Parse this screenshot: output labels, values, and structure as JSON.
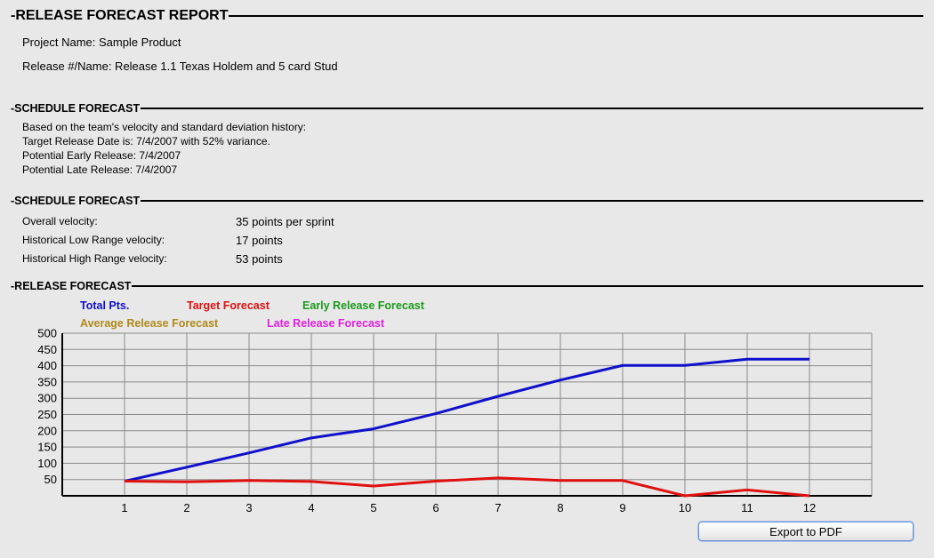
{
  "report": {
    "title": "-RELEASE FORECAST REPORT",
    "project_name": "Project Name: Sample Product",
    "release_name": "Release #/Name: Release 1.1 Texas Holdem and 5 card Stud"
  },
  "schedule_forecast_1": {
    "title": "-SCHEDULE FORECAST",
    "lines": [
      "Based on the team's velocity and standard deviation history:",
      "Target Release Date is: 7/4/2007 with 52% variance.",
      "Potential Early Release: 7/4/2007",
      "Potential Late Release: 7/4/2007"
    ]
  },
  "schedule_forecast_2": {
    "title": "-SCHEDULE FORECAST",
    "rows": [
      {
        "label": "Overall velocity:",
        "value": "35 points per sprint"
      },
      {
        "label": "Historical Low Range velocity:",
        "value": "17 points"
      },
      {
        "label": "Historical High Range velocity:",
        "value": "53 points"
      }
    ]
  },
  "release_forecast": {
    "title": "-RELEASE FORECAST"
  },
  "legend": [
    {
      "label": "Total Pts.",
      "color": "#1010cc"
    },
    {
      "label": "Target Forecast",
      "color": "#e01010"
    },
    {
      "label": "Early Release Forecast",
      "color": "#1a9a1a"
    },
    {
      "label": "Average Release Forecast",
      "color": "#b08a1a"
    },
    {
      "label": "Late Release Forecast",
      "color": "#e020e0"
    }
  ],
  "chart_data": {
    "type": "line",
    "x": [
      1,
      2,
      3,
      4,
      5,
      6,
      7,
      8,
      9,
      10,
      11,
      12
    ],
    "y_ticks": [
      50,
      100,
      150,
      200,
      250,
      300,
      350,
      400,
      450,
      500
    ],
    "ylim": [
      0,
      500
    ],
    "xlim": [
      0,
      13
    ],
    "grid": true,
    "series": [
      {
        "name": "Total Pts.",
        "color": "#1010cc",
        "values": [
          45,
          88,
          132,
          178,
          206,
          253,
          306,
          356,
          401,
          401,
          420,
          420
        ]
      },
      {
        "name": "Target Forecast",
        "color": "#e01010",
        "values": [
          45,
          43,
          47,
          44,
          30,
          45,
          55,
          47,
          47,
          0,
          18,
          0
        ]
      }
    ]
  },
  "actions": {
    "export_label": "Export to PDF"
  }
}
